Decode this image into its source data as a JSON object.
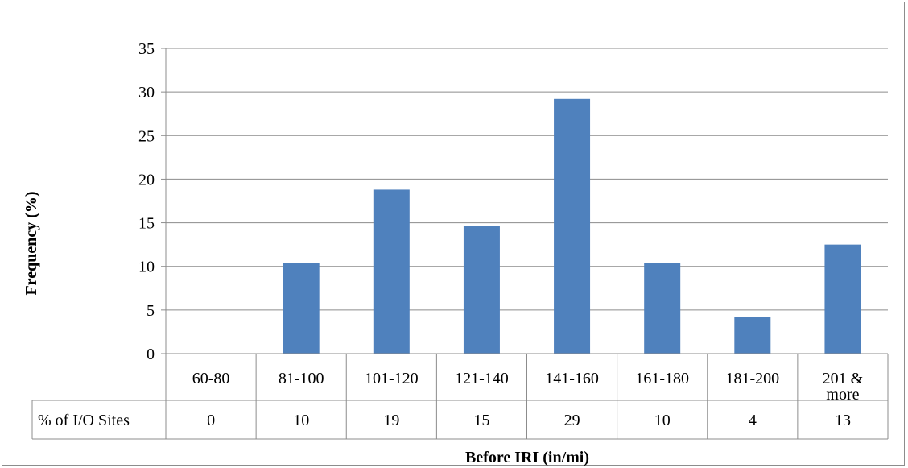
{
  "chart_data": {
    "type": "bar",
    "categories": [
      "60-80",
      "81-100",
      "101-120",
      "121-140",
      "141-160",
      "161-180",
      "181-200",
      "201 & more"
    ],
    "values": [
      0,
      10.4,
      18.8,
      14.6,
      29.2,
      10.4,
      4.2,
      12.5
    ],
    "ylim": [
      0,
      35
    ],
    "yticks": [
      0,
      5,
      10,
      15,
      20,
      25,
      30,
      35
    ],
    "ylabel": "Frequency (%)",
    "xlabel": "Before IRI (in/mi)",
    "bar_color": "#4f81bd",
    "grid": true,
    "table": {
      "row_label": "% of I/O Sites",
      "values": [
        "0",
        "10",
        "19",
        "15",
        "29",
        "10",
        "4",
        "13"
      ]
    }
  }
}
